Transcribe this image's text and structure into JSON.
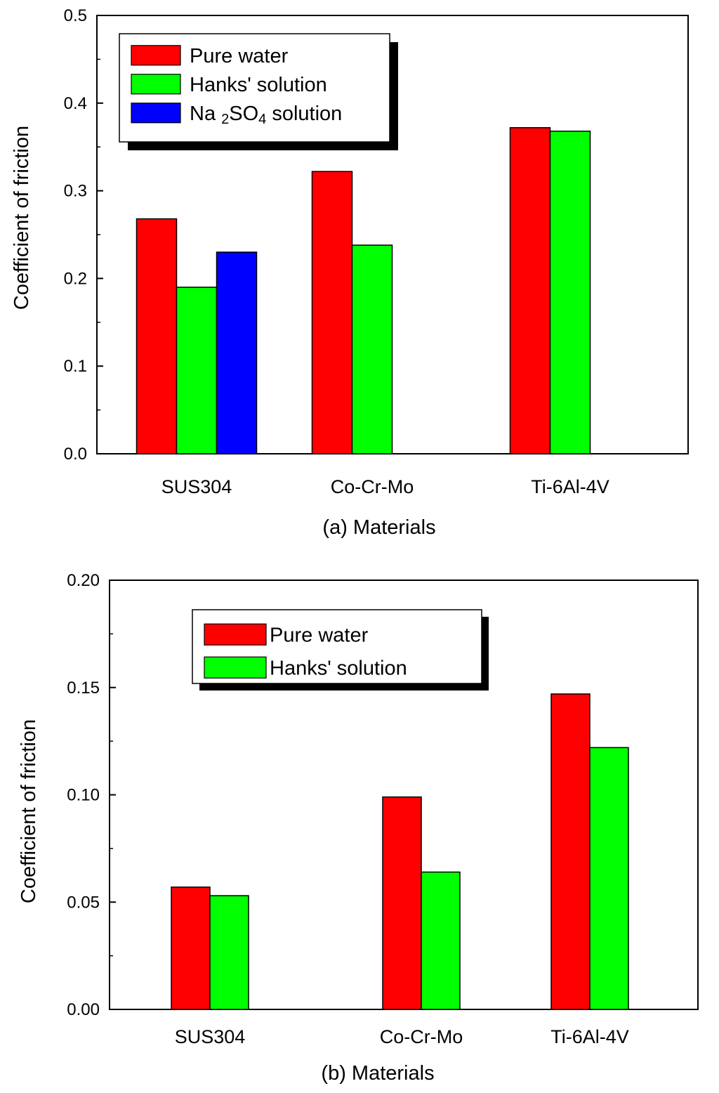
{
  "chart_data": [
    {
      "type": "bar",
      "panel": "(a)",
      "xlabel": "(a) Materials",
      "ylabel": "Coefficient  of friction",
      "ylim": [
        0.0,
        0.5
      ],
      "yticks": [
        "0.0",
        "0.1",
        "0.2",
        "0.3",
        "0.4",
        "0.5"
      ],
      "categories": [
        "SUS304",
        "Co-Cr-Mo",
        "Ti-6Al-4V"
      ],
      "series": [
        {
          "name": "Pure water",
          "color": "#ff0000",
          "values": [
            0.268,
            0.322,
            0.372
          ]
        },
        {
          "name": "Hanks' solution",
          "color": "#00ff00",
          "values": [
            0.19,
            0.238,
            0.368
          ]
        },
        {
          "name": "Na2SO4 solution",
          "name_parts": [
            "Na ",
            "2",
            "SO",
            "4",
            " solution"
          ],
          "color": "#0000ff",
          "values": [
            0.23,
            null,
            null
          ]
        }
      ],
      "legend_position": "top-left"
    },
    {
      "type": "bar",
      "panel": "(b)",
      "xlabel": "(b) Materials",
      "ylabel": "Coefficient  of friction",
      "ylim": [
        0.0,
        0.2
      ],
      "yticks": [
        "0.00",
        "0.05",
        "0.10",
        "0.15",
        "0.20"
      ],
      "categories": [
        "SUS304",
        "Co-Cr-Mo",
        "Ti-6Al-4V"
      ],
      "series": [
        {
          "name": "Pure water",
          "color": "#ff0000",
          "values": [
            0.057,
            0.099,
            0.147
          ]
        },
        {
          "name": "Hanks' solution",
          "color": "#00ff00",
          "values": [
            0.053,
            0.064,
            0.122
          ]
        }
      ],
      "legend_position": "top-center"
    }
  ]
}
